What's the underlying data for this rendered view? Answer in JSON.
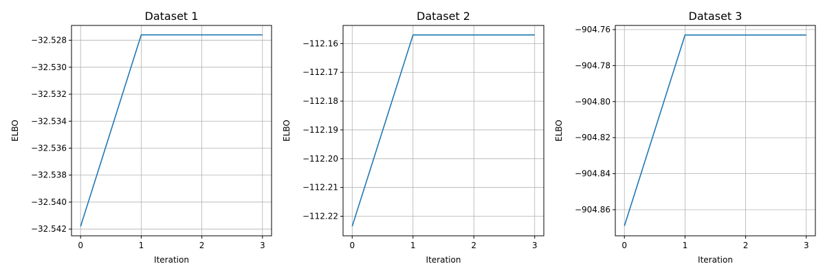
{
  "chart_data": [
    {
      "type": "line",
      "title": "Dataset 1",
      "xlabel": "Iteration",
      "ylabel": "ELBO",
      "x": [
        0,
        1,
        2,
        3
      ],
      "series": [
        {
          "values": [
            -32.5418,
            -32.5276,
            -32.5276,
            -32.5276
          ]
        }
      ],
      "xlim": [
        -0.15,
        3.15
      ],
      "ylim": [
        -32.5425,
        -32.5269
      ],
      "xticks": [
        0,
        1,
        2,
        3
      ],
      "xtick_labels": [
        "0",
        "1",
        "2",
        "3"
      ],
      "yticks": [
        -32.542,
        -32.54,
        -32.538,
        -32.536,
        -32.534,
        -32.532,
        -32.53,
        -32.528
      ],
      "ytick_labels": [
        "−32.542",
        "−32.540",
        "−32.538",
        "−32.536",
        "−32.534",
        "−32.532",
        "−32.530",
        "−32.528"
      ],
      "grid": true,
      "color": "#1f77b4"
    },
    {
      "type": "line",
      "title": "Dataset 2",
      "xlabel": "Iteration",
      "ylabel": "ELBO",
      "x": [
        0,
        1,
        2,
        3
      ],
      "series": [
        {
          "values": [
            -112.2235,
            -112.157,
            -112.157,
            -112.157
          ]
        }
      ],
      "xlim": [
        -0.15,
        3.15
      ],
      "ylim": [
        -112.2268,
        -112.1537
      ],
      "xticks": [
        0,
        1,
        2,
        3
      ],
      "xtick_labels": [
        "0",
        "1",
        "2",
        "3"
      ],
      "yticks": [
        -112.22,
        -112.21,
        -112.2,
        -112.19,
        -112.18,
        -112.17,
        -112.16
      ],
      "ytick_labels": [
        "−112.22",
        "−112.21",
        "−112.20",
        "−112.19",
        "−112.18",
        "−112.17",
        "−112.16"
      ],
      "grid": true,
      "color": "#1f77b4"
    },
    {
      "type": "line",
      "title": "Dataset 3",
      "xlabel": "Iteration",
      "ylabel": "ELBO",
      "x": [
        0,
        1,
        2,
        3
      ],
      "series": [
        {
          "values": [
            -904.869,
            -904.763,
            -904.763,
            -904.763
          ]
        }
      ],
      "xlim": [
        -0.15,
        3.15
      ],
      "ylim": [
        -904.8745,
        -904.7577
      ],
      "xticks": [
        0,
        1,
        2,
        3
      ],
      "xtick_labels": [
        "0",
        "1",
        "2",
        "3"
      ],
      "yticks": [
        -904.86,
        -904.84,
        -904.82,
        -904.8,
        -904.78,
        -904.76
      ],
      "ytick_labels": [
        "−904.86",
        "−904.84",
        "−904.82",
        "−904.80",
        "−904.78",
        "−904.76"
      ],
      "grid": true,
      "color": "#1f77b4"
    }
  ]
}
